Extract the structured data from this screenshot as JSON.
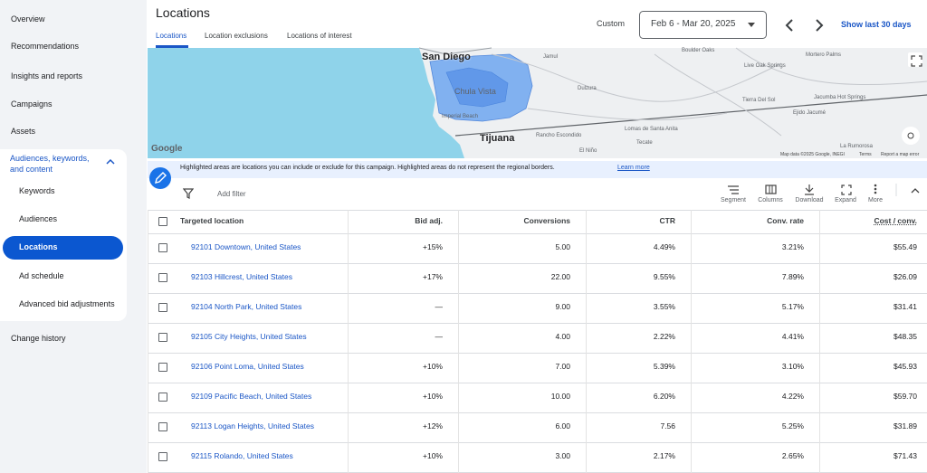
{
  "sidebar": {
    "items": [
      "Overview",
      "Recommendations",
      "Insights and reports",
      "Campaigns",
      "Assets"
    ],
    "group": {
      "title": "Audiences, keywords, and content",
      "items": [
        "Keywords",
        "Audiences",
        "Locations",
        "Ad schedule",
        "Advanced bid adjustments"
      ],
      "selected": 2
    },
    "footer_item": "Change history"
  },
  "header": {
    "title": "Locations",
    "tabs": [
      "Locations",
      "Location exclusions",
      "Locations of interest"
    ],
    "active_tab": 0,
    "date_label": "Custom",
    "date_range": "Feb 6 - Mar 20, 2025",
    "show_last": "Show last 30 days"
  },
  "map": {
    "labels": [
      "San Diego",
      "Chula Vista",
      "Imperial Beach",
      "Tijuana",
      "Jamul",
      "Dulzura",
      "Tecate",
      "Boulder Oaks",
      "Live Oak Springs",
      "Tierra Del Sol",
      "Jacumba Hot Springs",
      "Ejido Jacumé",
      "La Rumorosa",
      "Rancho Escondido",
      "El Niño",
      "Lomas de Santa Anita",
      "Mortero Palms"
    ],
    "logo": "Google",
    "attribution": "Map data ©2025 Google, INEGI",
    "terms": "Terms",
    "report": "Report a map error"
  },
  "notice": {
    "text": "Highlighted areas are locations you can include or exclude for this campaign. Highlighted areas do not represent the regional borders.",
    "link": "Learn more"
  },
  "toolbar": {
    "filter": "Add filter",
    "actions": [
      "Segment",
      "Columns",
      "Download",
      "Expand",
      "More"
    ]
  },
  "table": {
    "columns": [
      "Targeted location",
      "Bid adj.",
      "Conversions",
      "CTR",
      "Conv. rate",
      "Cost / conv."
    ],
    "rows": [
      [
        "92101 Downtown, United States",
        "+15%",
        "5.00",
        "4.49%",
        "3.21%",
        "$55.49"
      ],
      [
        "92103 Hillcrest, United States",
        "+17%",
        "22.00",
        "9.55%",
        "7.89%",
        "$26.09"
      ],
      [
        "92104 North Park, United States",
        "—",
        "9.00",
        "3.55%",
        "5.17%",
        "$31.41"
      ],
      [
        "92105 City Heights, United States",
        "—",
        "4.00",
        "2.22%",
        "4.41%",
        "$48.35"
      ],
      [
        "92106 Point Loma, United States",
        "+10%",
        "7.00",
        "5.39%",
        "3.10%",
        "$45.93"
      ],
      [
        "92109 Pacific Beach, United States",
        "+10%",
        "10.00",
        "6.20%",
        "4.22%",
        "$59.70"
      ],
      [
        "92113 Logan Heights, United States",
        "+12%",
        "6.00",
        "7.56",
        "5.25%",
        "$31.89"
      ],
      [
        "92115 Rolando, United States",
        "+10%",
        "3.00",
        "2.17%",
        "2.65%",
        "$71.43"
      ]
    ]
  }
}
